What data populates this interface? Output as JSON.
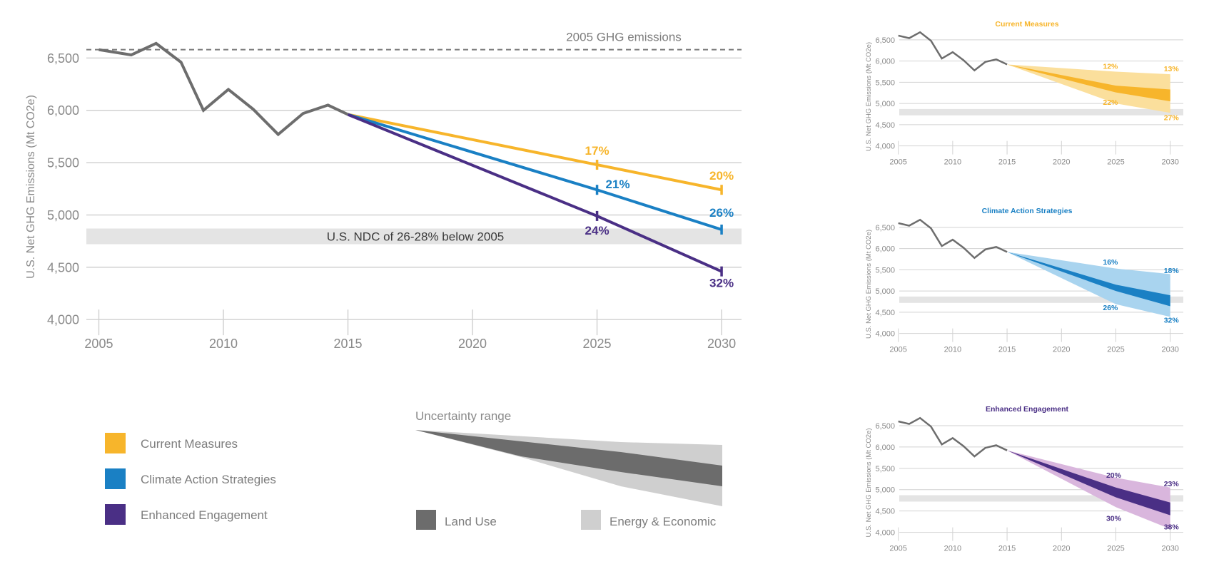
{
  "colors": {
    "history": "#6d6d6d",
    "current": "#f7b52b",
    "climate": "#1a80c4",
    "enhanced": "#4a2f85",
    "current_light": "#fbdf9c",
    "climate_light": "#a9d4ef",
    "enhanced_light": "#d9b6dd",
    "land_use": "#6c6c6c",
    "energy": "#cfcfcf",
    "ndc_band": "#e4e4e4",
    "grid": "#d2d2d2",
    "axis_text": "#8a8a8a"
  },
  "chart_data": [
    {
      "id": "main",
      "type": "line",
      "title": "",
      "xlabel": "",
      "ylabel": "U.S. Net GHG Emissions (Mt CO2e)",
      "xlim": [
        2004.5,
        2030.8
      ],
      "ylim": [
        3960,
        6680
      ],
      "xticks": [
        2005,
        2010,
        2015,
        2020,
        2025,
        2030
      ],
      "xtick_labels": [
        "2005",
        "2010",
        "2015",
        "2020",
        "2025",
        "2030"
      ],
      "yticks": [
        4000,
        4500,
        5000,
        5500,
        6000,
        6500
      ],
      "ytick_labels": [
        "4,000",
        "4,500",
        "5,000",
        "5,500",
        "6,000",
        "6,500"
      ],
      "grid": true,
      "reference_line": {
        "label": "2005 GHG emissions",
        "y": 6580
      },
      "ndc_band": {
        "label": "U.S. NDC of 26-28% below 2005",
        "y_low": 4720,
        "y_high": 4870
      },
      "history": {
        "x": [
          2005,
          2006.3,
          2007.3,
          2008.3,
          2009.2,
          2010.2,
          2011.2,
          2012.2,
          2013.2,
          2014.2,
          2015
        ],
        "y": [
          6580,
          6530,
          6640,
          6460,
          6000,
          6200,
          6010,
          5770,
          5970,
          6050,
          5960
        ]
      },
      "series": [
        {
          "name": "Current Measures",
          "color_key": "current",
          "x": [
            2015,
            2025,
            2030
          ],
          "y": [
            5960,
            5480,
            5240
          ],
          "labels": [
            {
              "x": 2025,
              "y": 5480,
              "text": "17%"
            },
            {
              "x": 2030,
              "y": 5240,
              "text": "20%"
            }
          ]
        },
        {
          "name": "Climate Action Strategies",
          "color_key": "climate",
          "x": [
            2015,
            2025,
            2030
          ],
          "y": [
            5960,
            5240,
            4860
          ],
          "labels": [
            {
              "x": 2025,
              "y": 5240,
              "text": "21%"
            },
            {
              "x": 2030,
              "y": 4860,
              "text": "26%"
            }
          ]
        },
        {
          "name": "Enhanced Engagement",
          "color_key": "enhanced",
          "x": [
            2015,
            2025,
            2030
          ],
          "y": [
            5960,
            4990,
            4460
          ],
          "labels": [
            {
              "x": 2025,
              "y": 4990,
              "text": "24%"
            },
            {
              "x": 2030,
              "y": 4460,
              "text": "32%"
            }
          ]
        }
      ]
    },
    {
      "id": "current",
      "type": "area",
      "title": "Current Measures",
      "color_key": "current",
      "ylabel": "U.S. Net GHG Emissions (Mt CO2e)",
      "xlim": [
        2004.3,
        2031.2
      ],
      "ylim": [
        3960,
        6700
      ],
      "xticks": [
        2005,
        2010,
        2015,
        2020,
        2025,
        2030
      ],
      "xtick_labels": [
        "2005",
        "2010",
        "2015",
        "2020",
        "2025",
        "2030"
      ],
      "yticks": [
        4000,
        4500,
        5000,
        5500,
        6000,
        6500
      ],
      "ytick_labels": [
        "4,000",
        "4,500",
        "5,000",
        "5,500",
        "6,000",
        "6,500"
      ],
      "grid": true,
      "ndc_band": {
        "y_low": 4720,
        "y_high": 4870
      },
      "history": {
        "x": [
          2005,
          2006,
          2007,
          2008,
          2009,
          2010,
          2011,
          2012,
          2013,
          2014,
          2015
        ],
        "y": [
          6600,
          6540,
          6680,
          6480,
          6060,
          6210,
          6020,
          5780,
          5980,
          6040,
          5920
        ]
      },
      "outer_band": {
        "x": [
          2015,
          2025,
          2030
        ],
        "upper": [
          5920,
          5750,
          5690
        ],
        "lower": [
          5920,
          5000,
          4780
        ]
      },
      "inner_band": {
        "x": [
          2015,
          2025,
          2030
        ],
        "upper": [
          5920,
          5420,
          5330
        ],
        "lower": [
          5920,
          5260,
          5050
        ]
      },
      "labels": [
        {
          "x": 2024.5,
          "y": 5820,
          "text": "12%"
        },
        {
          "x": 2024.5,
          "y": 4970,
          "text": "22%"
        },
        {
          "x": 2030.1,
          "y": 5760,
          "text": "13%"
        },
        {
          "x": 2030.1,
          "y": 4610,
          "text": "27%"
        }
      ]
    },
    {
      "id": "climate",
      "type": "area",
      "title": "Climate Action Strategies",
      "color_key": "climate",
      "ylabel": "U.S. Net GHG Emissions (Mt CO2e)",
      "xlim": [
        2004.3,
        2031.2
      ],
      "ylim": [
        3960,
        6700
      ],
      "xticks": [
        2005,
        2010,
        2015,
        2020,
        2025,
        2030
      ],
      "xtick_labels": [
        "2005",
        "2010",
        "2015",
        "2020",
        "2025",
        "2030"
      ],
      "yticks": [
        4000,
        4500,
        5000,
        5500,
        6000,
        6500
      ],
      "ytick_labels": [
        "4,000",
        "4,500",
        "5,000",
        "5,500",
        "6,000",
        "6,500"
      ],
      "grid": true,
      "ndc_band": {
        "y_low": 4720,
        "y_high": 4870
      },
      "history": {
        "x": [
          2005,
          2006,
          2007,
          2008,
          2009,
          2010,
          2011,
          2012,
          2013,
          2014,
          2015
        ],
        "y": [
          6600,
          6540,
          6680,
          6480,
          6060,
          6210,
          6020,
          5780,
          5980,
          6040,
          5920
        ]
      },
      "outer_band": {
        "x": [
          2015,
          2025,
          2030
        ],
        "upper": [
          5920,
          5530,
          5400
        ],
        "lower": [
          5920,
          4690,
          4390
        ]
      },
      "inner_band": {
        "x": [
          2015,
          2025,
          2030
        ],
        "upper": [
          5920,
          5150,
          4900
        ],
        "lower": [
          5920,
          5000,
          4640
        ]
      },
      "labels": [
        {
          "x": 2024.5,
          "y": 5620,
          "text": "16%"
        },
        {
          "x": 2024.5,
          "y": 4550,
          "text": "26%"
        },
        {
          "x": 2030.1,
          "y": 5420,
          "text": "18%"
        },
        {
          "x": 2030.1,
          "y": 4250,
          "text": "32%"
        }
      ]
    },
    {
      "id": "enhanced",
      "type": "area",
      "title": "Enhanced Engagement",
      "color_key": "enhanced",
      "ylabel": "U.S. Net GHG Emissions (Mt CO2e)",
      "xlim": [
        2004.3,
        2031.2
      ],
      "ylim": [
        3960,
        6700
      ],
      "xticks": [
        2005,
        2010,
        2015,
        2020,
        2025,
        2030
      ],
      "xtick_labels": [
        "2005",
        "2010",
        "2015",
        "2020",
        "2025",
        "2030"
      ],
      "yticks": [
        4000,
        4500,
        5000,
        5500,
        6000,
        6500
      ],
      "ytick_labels": [
        "4,000",
        "4,500",
        "5,000",
        "5,500",
        "6,000",
        "6,500"
      ],
      "grid": true,
      "ndc_band": {
        "y_low": 4720,
        "y_high": 4870
      },
      "history": {
        "x": [
          2005,
          2006,
          2007,
          2008,
          2009,
          2010,
          2011,
          2012,
          2013,
          2014,
          2015
        ],
        "y": [
          6600,
          6540,
          6680,
          6480,
          6060,
          6210,
          6020,
          5780,
          5980,
          6040,
          5920
        ]
      },
      "outer_band": {
        "x": [
          2015,
          2025,
          2030
        ],
        "upper": [
          5920,
          5280,
          5050
        ],
        "lower": [
          5920,
          4590,
          4080
        ]
      },
      "inner_band": {
        "x": [
          2015,
          2025,
          2030
        ],
        "upper": [
          5920,
          5050,
          4700
        ],
        "lower": [
          5920,
          4820,
          4400
        ]
      },
      "labels": [
        {
          "x": 2024.8,
          "y": 5280,
          "text": "20%"
        },
        {
          "x": 2024.8,
          "y": 4270,
          "text": "30%"
        },
        {
          "x": 2030.1,
          "y": 5080,
          "text": "23%"
        },
        {
          "x": 2030.1,
          "y": 4070,
          "text": "38%"
        }
      ]
    }
  ],
  "legend": {
    "items": [
      {
        "label": "Current Measures",
        "color_key": "current"
      },
      {
        "label": "Climate Action Strategies",
        "color_key": "climate"
      },
      {
        "label": "Enhanced Engagement",
        "color_key": "enhanced"
      }
    ]
  },
  "uncertainty": {
    "title": "Uncertainty range",
    "items": [
      {
        "label": "Land Use",
        "color_key": "land_use"
      },
      {
        "label": "Energy & Economic",
        "color_key": "energy"
      }
    ]
  }
}
